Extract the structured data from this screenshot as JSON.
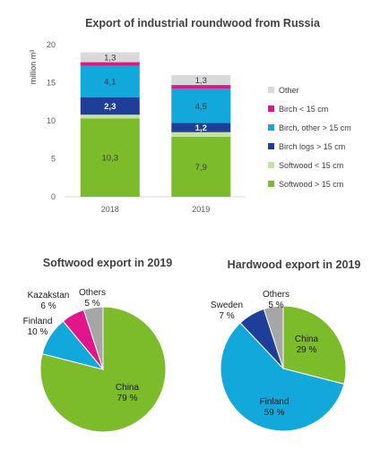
{
  "colors": {
    "softwood_gt15": "#7CBB2A",
    "softwood_lt15": "#C5E0A3",
    "birch_logs": "#1E3E99",
    "birch_other": "#13A8DC",
    "birch_lt15": "#E2168B",
    "other": "#D9D9D9",
    "china": "#7CBB2A",
    "finland": "#13A8DC",
    "kazakstan": "#E2168B",
    "sweden": "#1E3E99",
    "others": "#A6A6A6"
  },
  "chart_data": [
    {
      "type": "bar",
      "stacked": true,
      "title": "Export of industrial roundwood from Russia",
      "ylabel": "million m³",
      "xlabel": "",
      "categories": [
        "2018",
        "2019"
      ],
      "ylim": [
        0,
        20
      ],
      "yticks": [
        "0",
        "5",
        "10",
        "15",
        "20"
      ],
      "grid": false,
      "legend_position": "right",
      "series": [
        {
          "key": "softwood_gt15",
          "name": "Softwood > 15 cm",
          "values": [
            10.3,
            7.9
          ],
          "labels": [
            "10,3",
            "7,9"
          ],
          "label_color": "#3a3a3a"
        },
        {
          "key": "softwood_lt15",
          "name": "Softwood < 15 cm",
          "values": [
            0.5,
            0.6
          ],
          "labels": [
            "",
            ""
          ],
          "label_color": "#3a3a3a"
        },
        {
          "key": "birch_logs",
          "name": "Birch logs > 15 cm",
          "values": [
            2.3,
            1.2
          ],
          "labels": [
            "2,3",
            "1,2"
          ],
          "label_color": "#ffffff"
        },
        {
          "key": "birch_other",
          "name": "Birch, other > 15 cm",
          "values": [
            4.1,
            4.5
          ],
          "labels": [
            "4,1",
            "4,5"
          ],
          "label_color": "#3a3a3a"
        },
        {
          "key": "birch_lt15",
          "name": "Birch < 15 cm",
          "values": [
            0.5,
            0.5
          ],
          "labels": [
            "",
            ""
          ],
          "label_color": "#3a3a3a"
        },
        {
          "key": "other",
          "name": "Other",
          "values": [
            1.3,
            1.3
          ],
          "labels": [
            "1,3",
            "1,3"
          ],
          "label_color": "#3a3a3a"
        }
      ]
    },
    {
      "type": "pie",
      "title": "Softwood export in 2019",
      "slices": [
        {
          "key": "china",
          "name": "China",
          "value": 79,
          "label": "79 %"
        },
        {
          "key": "finland",
          "name": "Finland",
          "value": 10,
          "label": "10 %"
        },
        {
          "key": "kazakstan",
          "name": "Kazakstan",
          "value": 6,
          "label": "6 %"
        },
        {
          "key": "others",
          "name": "Others",
          "value": 5,
          "label": "5 %"
        }
      ]
    },
    {
      "type": "pie",
      "title": "Hardwood export in 2019",
      "slices": [
        {
          "key": "china",
          "name": "China",
          "value": 29,
          "label": "29 %"
        },
        {
          "key": "finland",
          "name": "Finland",
          "value": 59,
          "label": "59 %"
        },
        {
          "key": "sweden",
          "name": "Sweden",
          "value": 7,
          "label": "7 %"
        },
        {
          "key": "others",
          "name": "Others",
          "value": 5,
          "label": "5 %"
        }
      ]
    }
  ]
}
